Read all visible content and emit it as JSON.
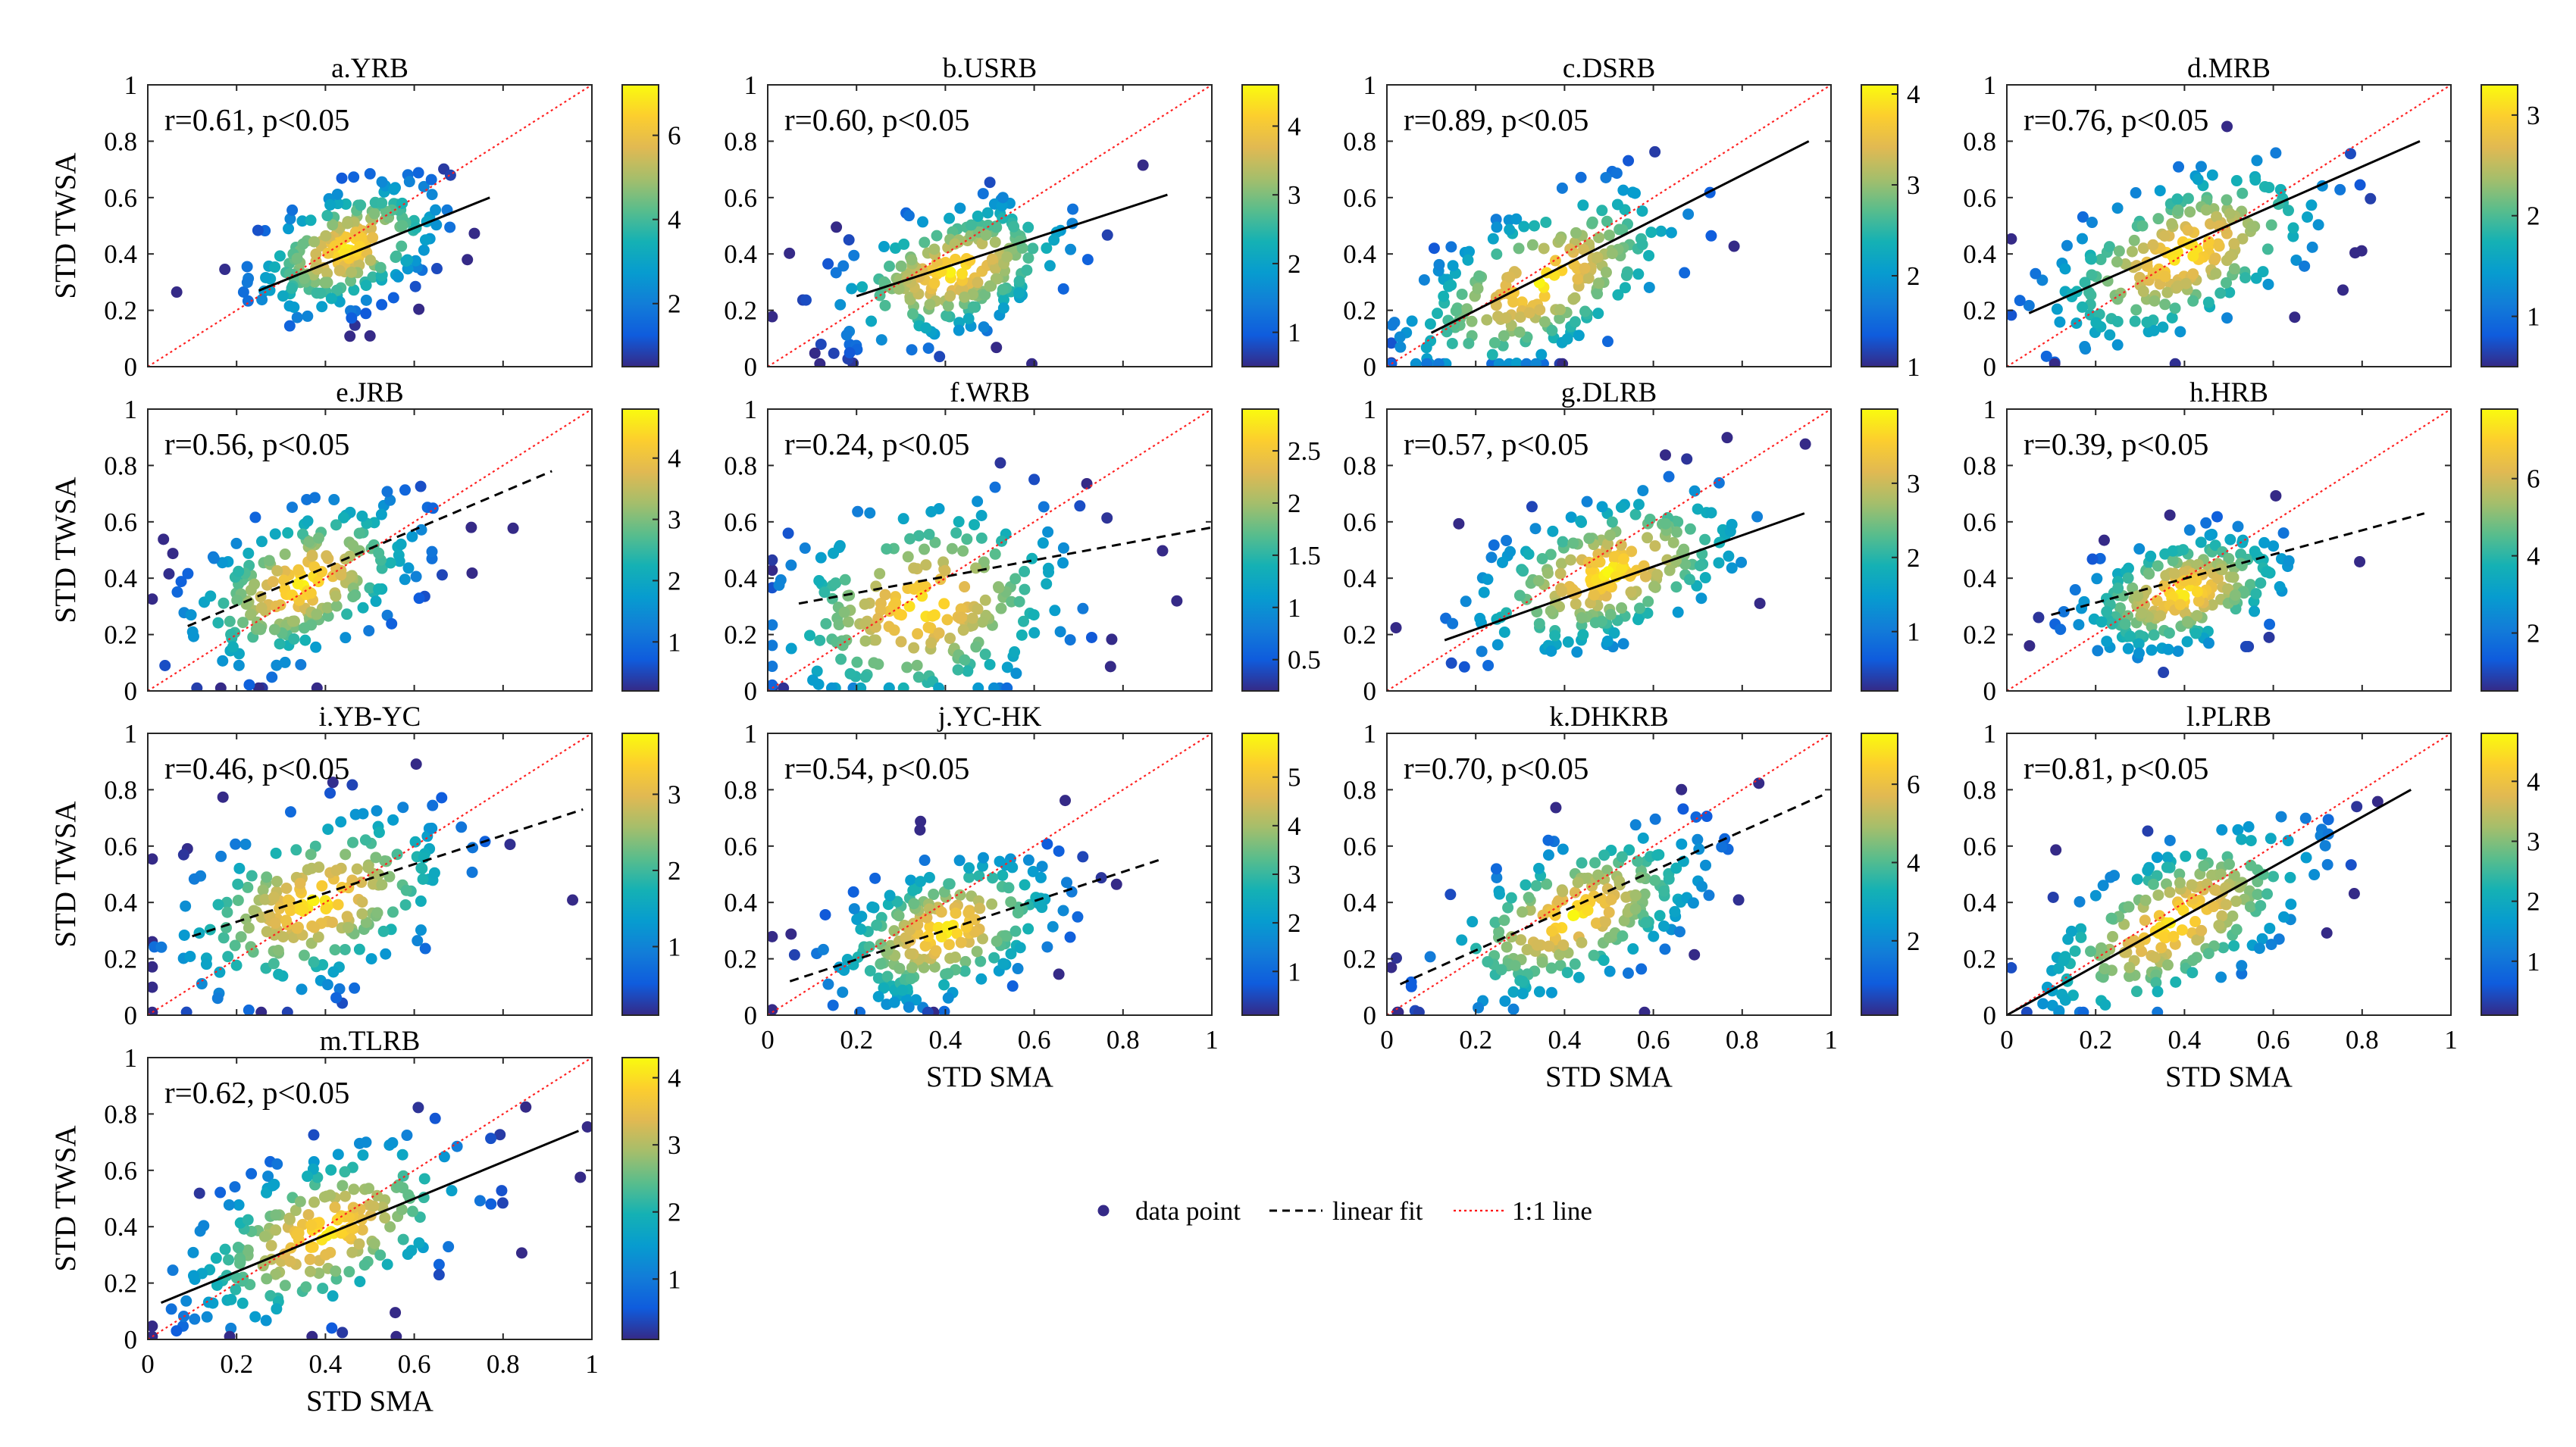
{
  "figure": {
    "xlabel": "STD SMA",
    "ylabel": "STD TWSA",
    "axis_ticks": [
      "0",
      "0.2",
      "0.4",
      "0.6",
      "0.8",
      "1"
    ],
    "y_ticks": [
      "0",
      "0.2",
      "0.4",
      "0.6",
      "0.8",
      "1"
    ]
  },
  "legend": {
    "items": [
      {
        "label": "data point",
        "marker": "dot",
        "color": "#352a87"
      },
      {
        "label": "linear fit",
        "marker": "dashed-line",
        "color": "#000000"
      },
      {
        "label": "1:1 line",
        "marker": "dotted-line",
        "color": "#ff0000"
      }
    ]
  },
  "chart_data": [
    {
      "type": "scatter",
      "title": "a.YRB",
      "stat": "r=0.61, p<0.05",
      "xlim": [
        0,
        1
      ],
      "ylim": [
        0,
        1
      ],
      "fit": {
        "x": [
          0.25,
          0.77
        ],
        "y": [
          0.27,
          0.6
        ]
      },
      "fit_style": "solid",
      "colorbar": {
        "min": 0.5,
        "max": 7.2,
        "ticks": [
          "2",
          "4",
          "6"
        ],
        "tick_values": [
          2,
          4,
          6
        ]
      },
      "center": [
        0.45,
        0.42
      ],
      "spread": [
        0.11,
        0.11
      ]
    },
    {
      "type": "scatter",
      "title": "b.USRB",
      "stat": "r=0.60, p<0.05",
      "xlim": [
        0,
        1
      ],
      "ylim": [
        0,
        1
      ],
      "fit": {
        "x": [
          0.2,
          0.9
        ],
        "y": [
          0.25,
          0.61
        ]
      },
      "fit_style": "solid",
      "colorbar": {
        "min": 0.5,
        "max": 4.6,
        "ticks": [
          "1",
          "2",
          "3",
          "4"
        ],
        "tick_values": [
          1,
          2,
          3,
          4
        ]
      },
      "center": [
        0.42,
        0.34
      ],
      "spread": [
        0.14,
        0.12
      ]
    },
    {
      "type": "scatter",
      "title": "c.DSRB",
      "stat": "r=0.89, p<0.05",
      "xlim": [
        0,
        1
      ],
      "ylim": [
        0,
        1
      ],
      "fit": {
        "x": [
          0.1,
          0.95
        ],
        "y": [
          0.12,
          0.8
        ]
      },
      "fit_style": "solid",
      "colorbar": {
        "min": 1,
        "max": 4.1,
        "ticks": [
          "1",
          "2",
          "3",
          "4"
        ],
        "tick_values": [
          1,
          2,
          3,
          4
        ]
      },
      "center": [
        0.35,
        0.3
      ],
      "spread": [
        0.17,
        0.15
      ]
    },
    {
      "type": "scatter",
      "title": "d.MRB",
      "stat": "r=0.76, p<0.05",
      "xlim": [
        0,
        1
      ],
      "ylim": [
        0,
        1
      ],
      "fit": {
        "x": [
          0.05,
          0.93
        ],
        "y": [
          0.19,
          0.8
        ]
      },
      "fit_style": "solid",
      "colorbar": {
        "min": 0.5,
        "max": 3.3,
        "ticks": [
          "1",
          "2",
          "3"
        ],
        "tick_values": [
          1,
          2,
          3
        ]
      },
      "center": [
        0.4,
        0.4
      ],
      "spread": [
        0.17,
        0.15
      ]
    },
    {
      "type": "scatter",
      "title": "e.JRB",
      "stat": "r=0.56, p<0.05",
      "xlim": [
        0,
        1
      ],
      "ylim": [
        0,
        1
      ],
      "fit": {
        "x": [
          0.09,
          0.91
        ],
        "y": [
          0.23,
          0.78
        ]
      },
      "fit_style": "dashed",
      "colorbar": {
        "min": 0.2,
        "max": 4.8,
        "ticks": [
          "1",
          "2",
          "3",
          "4"
        ],
        "tick_values": [
          1,
          2,
          3,
          4
        ]
      },
      "center": [
        0.35,
        0.38
      ],
      "spread": [
        0.14,
        0.14
      ]
    },
    {
      "type": "scatter",
      "title": "f.WRB",
      "stat": "r=0.24, p<0.05",
      "xlim": [
        0,
        1
      ],
      "ylim": [
        0,
        1
      ],
      "fit": {
        "x": [
          0.07,
          1.0
        ],
        "y": [
          0.31,
          0.58
        ]
      },
      "fit_style": "dashed",
      "colorbar": {
        "min": 0.2,
        "max": 2.9,
        "ticks": [
          "0.5",
          "1",
          "1.5",
          "2",
          "2.5"
        ],
        "tick_values": [
          0.5,
          1,
          1.5,
          2,
          2.5
        ]
      },
      "center": [
        0.35,
        0.3
      ],
      "spread": [
        0.18,
        0.2
      ]
    },
    {
      "type": "scatter",
      "title": "g.DLRB",
      "stat": "r=0.57, p<0.05",
      "xlim": [
        0,
        1
      ],
      "ylim": [
        0,
        1
      ],
      "fit": {
        "x": [
          0.13,
          0.94
        ],
        "y": [
          0.18,
          0.63
        ]
      },
      "fit_style": "solid",
      "colorbar": {
        "min": 0.2,
        "max": 4.0,
        "ticks": [
          "1",
          "2",
          "3"
        ],
        "tick_values": [
          1,
          2,
          3
        ]
      },
      "center": [
        0.5,
        0.42
      ],
      "spread": [
        0.17,
        0.14
      ]
    },
    {
      "type": "scatter",
      "title": "h.HRB",
      "stat": "r=0.39, p<0.05",
      "xlim": [
        0,
        1
      ],
      "ylim": [
        0,
        1
      ],
      "fit": {
        "x": [
          0.1,
          0.94
        ],
        "y": [
          0.27,
          0.63
        ]
      },
      "fit_style": "dashed",
      "colorbar": {
        "min": 0.5,
        "max": 7.8,
        "ticks": [
          "2",
          "4",
          "6"
        ],
        "tick_values": [
          2,
          4,
          6
        ]
      },
      "center": [
        0.4,
        0.35
      ],
      "spread": [
        0.13,
        0.11
      ]
    },
    {
      "type": "scatter",
      "title": "i.YB-YC",
      "stat": "r=0.46, p<0.05",
      "xlim": [
        0,
        1
      ],
      "ylim": [
        0,
        1
      ],
      "fit": {
        "x": [
          0.1,
          0.98
        ],
        "y": [
          0.28,
          0.73
        ]
      },
      "fit_style": "dashed",
      "colorbar": {
        "min": 0.1,
        "max": 3.8,
        "ticks": [
          "1",
          "2",
          "3"
        ],
        "tick_values": [
          1,
          2,
          3
        ]
      },
      "center": [
        0.38,
        0.4
      ],
      "spread": [
        0.17,
        0.16
      ]
    },
    {
      "type": "scatter",
      "title": "j.YC-HK",
      "stat": "r=0.54, p<0.05",
      "xlim": [
        0,
        1
      ],
      "ylim": [
        0,
        1
      ],
      "fit": {
        "x": [
          0.05,
          0.88
        ],
        "y": [
          0.12,
          0.55
        ]
      },
      "fit_style": "dashed",
      "colorbar": {
        "min": 0.1,
        "max": 5.9,
        "ticks": [
          "1",
          "2",
          "3",
          "4",
          "5"
        ],
        "tick_values": [
          1,
          2,
          3,
          4,
          5
        ]
      },
      "center": [
        0.4,
        0.3
      ],
      "spread": [
        0.14,
        0.13
      ]
    },
    {
      "type": "scatter",
      "title": "k.DHKRB",
      "stat": "r=0.70, p<0.05",
      "xlim": [
        0,
        1
      ],
      "ylim": [
        0,
        1
      ],
      "fit": {
        "x": [
          0.03,
          0.98
        ],
        "y": [
          0.11,
          0.78
        ]
      },
      "fit_style": "dashed",
      "colorbar": {
        "min": 0.1,
        "max": 7.3,
        "ticks": [
          "2",
          "4",
          "6"
        ],
        "tick_values": [
          2,
          4,
          6
        ]
      },
      "center": [
        0.42,
        0.35
      ],
      "spread": [
        0.16,
        0.14
      ]
    },
    {
      "type": "scatter",
      "title": "l.PLRB",
      "stat": "r=0.81, p<0.05",
      "xlim": [
        0,
        1
      ],
      "ylim": [
        0,
        1
      ],
      "fit": {
        "x": [
          0.0,
          0.91
        ],
        "y": [
          0.0,
          0.8
        ]
      },
      "fit_style": "solid",
      "colorbar": {
        "min": 0.1,
        "max": 4.8,
        "ticks": [
          "1",
          "2",
          "3",
          "4"
        ],
        "tick_values": [
          1,
          2,
          3,
          4
        ]
      },
      "center": [
        0.38,
        0.33
      ],
      "spread": [
        0.17,
        0.15
      ]
    },
    {
      "type": "scatter",
      "title": "m.TLRB",
      "stat": "r=0.62, p<0.05",
      "xlim": [
        0,
        1
      ],
      "ylim": [
        0,
        1
      ],
      "fit": {
        "x": [
          0.03,
          0.97
        ],
        "y": [
          0.13,
          0.74
        ]
      },
      "fit_style": "solid",
      "colorbar": {
        "min": 0.1,
        "max": 4.3,
        "ticks": [
          "1",
          "2",
          "3",
          "4"
        ],
        "tick_values": [
          1,
          2,
          3,
          4
        ]
      },
      "center": [
        0.4,
        0.38
      ],
      "spread": [
        0.17,
        0.15
      ]
    }
  ]
}
